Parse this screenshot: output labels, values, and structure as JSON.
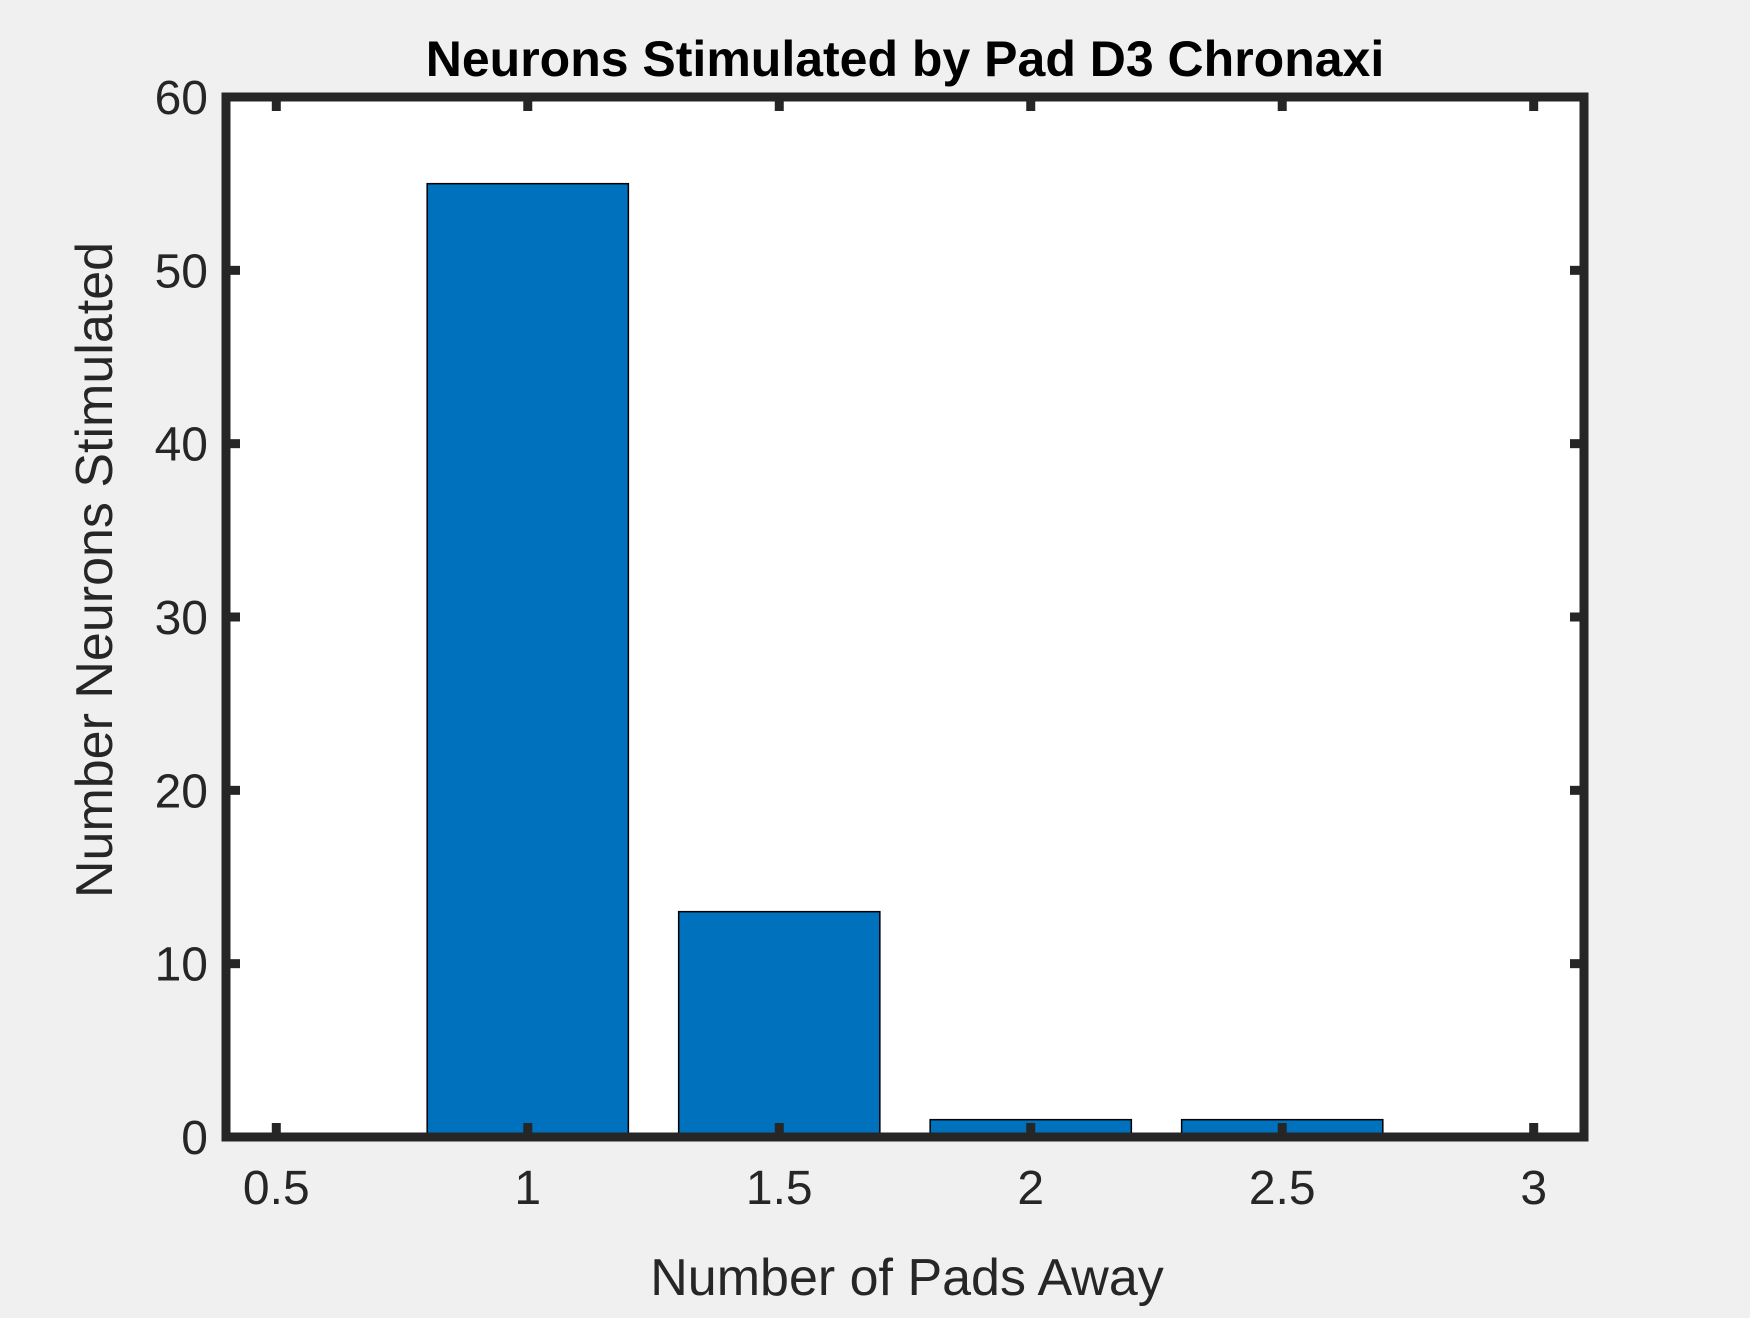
{
  "chart_data": {
    "type": "bar",
    "title": "Neurons Stimulated by Pad D3 Chronaxi",
    "xlabel": "Number of Pads Away",
    "ylabel": "Number Neurons Stimulated",
    "xlim": [
      0.4,
      3.1
    ],
    "ylim": [
      0,
      60
    ],
    "xticks": [
      0.5,
      1,
      1.5,
      2,
      2.5,
      3
    ],
    "xtick_labels": [
      "0.5",
      "1",
      "1.5",
      "2",
      "2.5",
      "3"
    ],
    "yticks": [
      0,
      10,
      20,
      30,
      40,
      50,
      60
    ],
    "ytick_labels": [
      "0",
      "10",
      "20",
      "30",
      "40",
      "50",
      "60"
    ],
    "x": [
      1,
      1.5,
      2,
      2.5
    ],
    "values": [
      55,
      13,
      1,
      1
    ],
    "bar_width": 0.4,
    "grid": false,
    "colors": {
      "bar": "#0072bd",
      "bar_edge": "#000000",
      "axes": "#262626",
      "plot_bg": "#ffffff",
      "figure_bg": "#f0f0f0"
    }
  }
}
